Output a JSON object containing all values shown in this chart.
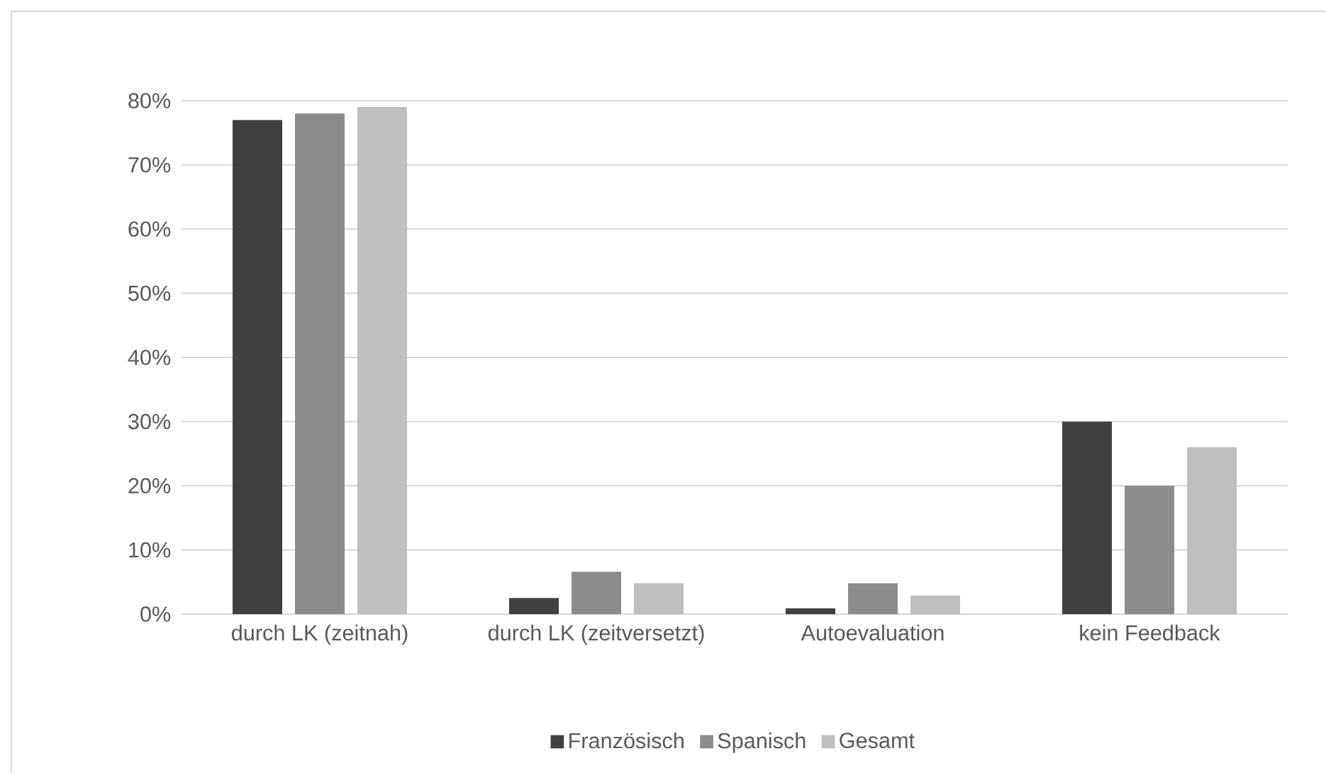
{
  "chart_data": {
    "type": "bar",
    "categories": [
      "durch LK (zeitnah)",
      "durch LK (zeitversetzt)",
      "Autoevaluation",
      "kein Feedback"
    ],
    "series": [
      {
        "name": "Französisch",
        "color": "#404040",
        "values": [
          77,
          2.5,
          0.9,
          30
        ]
      },
      {
        "name": "Spanisch",
        "color": "#8c8c8c",
        "values": [
          78,
          6.6,
          4.8,
          20
        ]
      },
      {
        "name": "Gesamt",
        "color": "#bfbfbf",
        "values": [
          79,
          4.8,
          2.9,
          26
        ]
      }
    ],
    "ylim": [
      0,
      80
    ],
    "yticks": [
      {
        "value": 0,
        "label": "0%"
      },
      {
        "value": 10,
        "label": "10%"
      },
      {
        "value": 20,
        "label": "20%"
      },
      {
        "value": 30,
        "label": "30%"
      },
      {
        "value": 40,
        "label": "40%"
      },
      {
        "value": 50,
        "label": "50%"
      },
      {
        "value": 60,
        "label": "60%"
      },
      {
        "value": 70,
        "label": "70%"
      },
      {
        "value": 80,
        "label": "80%"
      }
    ],
    "grid": "y",
    "legend": "bottom"
  }
}
